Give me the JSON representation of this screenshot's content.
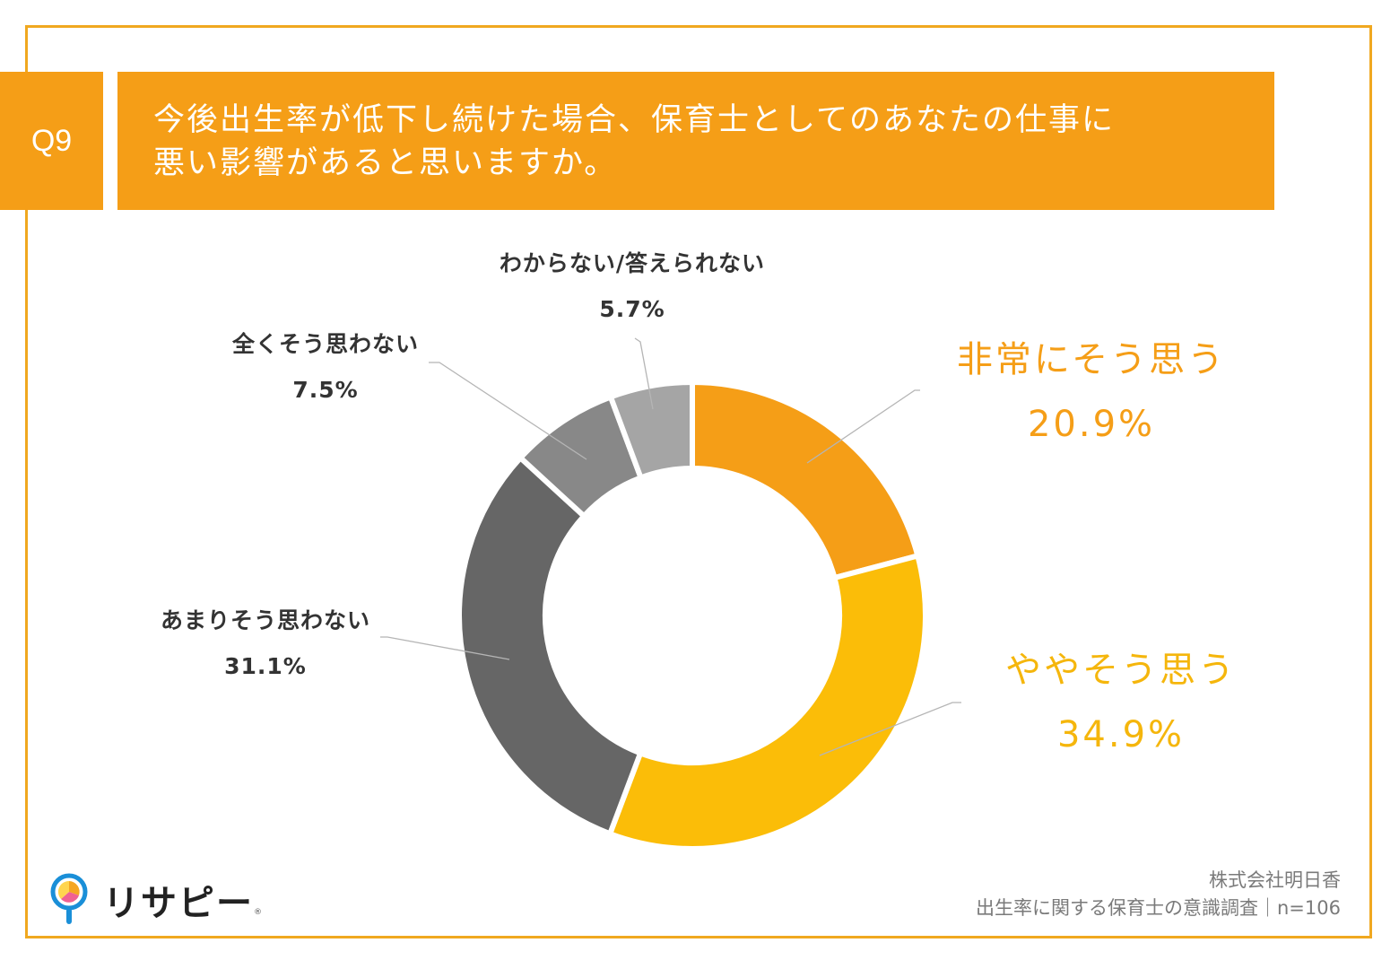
{
  "question": {
    "number": "Q9",
    "title_line1": "今後出生率が低下し続けた場合、保育士としてのあなたの仕事に",
    "title_line2": "悪い影響があると思いますか。"
  },
  "colors": {
    "frame": "#f0a820",
    "header": "#f59e17",
    "accent_orange": "#f59e17",
    "accent_yellow": "#f5b60c"
  },
  "chart_data": {
    "type": "pie",
    "variant": "donut",
    "title": "",
    "n": 106,
    "slices": [
      {
        "label": "非常にそう思う",
        "value": 20.9,
        "display": "20.9%",
        "color": "#f59e17"
      },
      {
        "label": "ややそう思う",
        "value": 34.9,
        "display": "34.9%",
        "color": "#fbbd08"
      },
      {
        "label": "あまりそう思わない",
        "value": 31.1,
        "display": "31.1%",
        "color": "#666666"
      },
      {
        "label": "全くそう思わない",
        "value": 7.5,
        "display": "7.5%",
        "color": "#888888"
      },
      {
        "label": "わからない/答えられない",
        "value": 5.7,
        "display": "5.7%",
        "color": "#a5a5a5"
      }
    ]
  },
  "logo": {
    "icon": "magnifier-pie-icon",
    "text": "リサピー",
    "mark": "®"
  },
  "footer": {
    "company": "株式会社明日香",
    "survey": "出生率に関する保育士の意識調査｜n=106"
  }
}
